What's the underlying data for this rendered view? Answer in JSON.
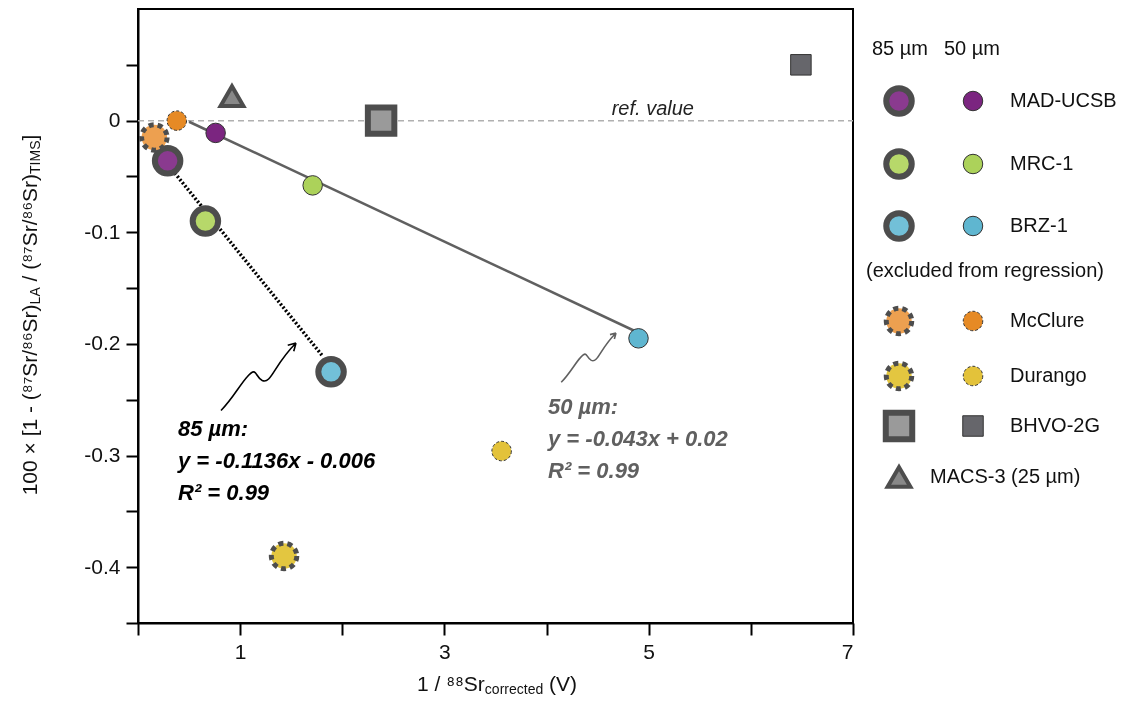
{
  "chart_data": {
    "type": "scatter",
    "xlabel": "1 / ⁸⁸Sr$_{corrected}$ (V)",
    "ylabel": "100 × [1 - (⁸⁷Sr/⁸⁶Sr)$_{LA}$ / (⁸⁷Sr/⁸⁶Sr)$_{TIMS}$]",
    "xlim": [
      0,
      7
    ],
    "ylim": [
      -0.45,
      0.1
    ],
    "xticks": [
      {
        "value": 0,
        "label": null
      },
      1,
      {
        "value": 2,
        "label": null
      },
      3,
      {
        "value": 4,
        "label": null
      },
      5,
      {
        "value": 6,
        "label": null
      },
      7
    ],
    "yticks": [
      {
        "value": 0.05,
        "label": null
      },
      0,
      {
        "value": -0.05,
        "label": null
      },
      -0.1,
      {
        "value": -0.15,
        "label": null
      },
      -0.2,
      {
        "value": -0.25,
        "label": null
      },
      -0.3,
      {
        "value": -0.35,
        "label": null
      },
      -0.4,
      {
        "value": -0.45,
        "label": null
      }
    ],
    "grid": false,
    "legend": "right",
    "series": [
      {
        "type": "line",
        "color": "#000000",
        "line_style": "dotted",
        "marker": "none",
        "x": [
          0.36,
          1.8
        ],
        "values": [
          -0.047,
          -0.21
        ]
      },
      {
        "type": "line",
        "color": "#606060",
        "line_style": "solid",
        "marker": "none",
        "x": [
          0.5,
          4.9
        ],
        "values": [
          -0.001,
          -0.19
        ]
      },
      {
        "color": "#8a3a8f",
        "marker": "circle",
        "x": [
          0.29
        ],
        "values": [
          -0.036
        ]
      },
      {
        "name": "MAD-UCSB",
        "color": "#7b2580",
        "marker": "circle",
        "x": [
          0.76
        ],
        "values": [
          -0.011
        ]
      },
      {
        "color": "#b7d86a",
        "marker": "circle",
        "x": [
          0.66
        ],
        "values": [
          -0.09
        ]
      },
      {
        "name": "MRC-1",
        "color": "#acd25a",
        "marker": "circle",
        "x": [
          1.71
        ],
        "values": [
          -0.058
        ]
      },
      {
        "color": "#72c0d8",
        "marker": "circle",
        "x": [
          1.89
        ],
        "values": [
          -0.225
        ]
      },
      {
        "name": "BRZ-1",
        "color": "#5fb6d0",
        "marker": "circle",
        "x": [
          4.9
        ],
        "values": [
          -0.195
        ]
      },
      {
        "color": "#eda050",
        "marker": "circle",
        "line_style": "dashed",
        "x": [
          0.16
        ],
        "values": [
          -0.015
        ]
      },
      {
        "name": "McClure",
        "color": "#e68a25",
        "marker": "circle",
        "line_style": "dashed",
        "x": [
          0.38
        ],
        "values": [
          0
        ]
      },
      {
        "color": "#e3c640",
        "marker": "circle",
        "line_style": "dashed",
        "x": [
          1.43
        ],
        "values": [
          -0.39
        ]
      },
      {
        "name": "Durango",
        "color": "#e3c23a",
        "marker": "circle",
        "line_style": "dashed",
        "x": [
          3.56
        ],
        "values": [
          -0.296
        ]
      },
      {
        "color": "#9a9a9a",
        "marker": "square",
        "x": [
          2.38
        ],
        "values": [
          0
        ]
      },
      {
        "name": "BHVO-2G",
        "color": "#66666b",
        "marker": "square",
        "x": [
          6.49
        ],
        "values": [
          0.05
        ]
      },
      {
        "name": "MACS-3 (25 µm)",
        "color": "#888888",
        "marker": "triangle",
        "x": [
          0.92
        ],
        "values": [
          0.022
        ]
      }
    ],
    "ref_lines": [
      {
        "axis": "y",
        "value": 0,
        "label": "ref. value",
        "color": "#b0b0b0",
        "line_style": "dashed"
      }
    ],
    "annotations": [
      "85 µm",
      "50 µm",
      "(excluded from regression)",
      "85 µm:\ny = -0.1136x - 0.006\nR² = 0.99",
      "50 µm:\ny = -0.043x + 0.02\nR² = 0.99"
    ]
  }
}
